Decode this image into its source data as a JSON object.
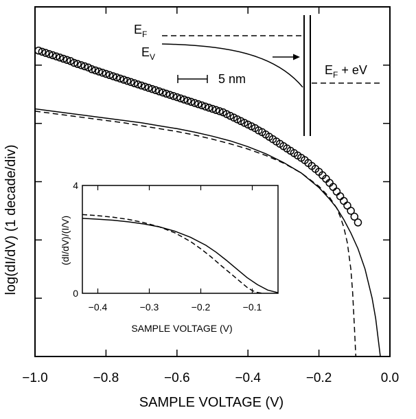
{
  "chart_data": [
    {
      "type": "scatter",
      "xlabel": "SAMPLE VOLTAGE (V)",
      "ylabel": "log(dI/dV) (1 decade/div)",
      "xlim": [
        -1.0,
        0.0
      ],
      "ylim": [
        0,
        6
      ],
      "x_ticks": [
        -1.0,
        -0.8,
        -0.6,
        -0.4,
        -0.2,
        0.0
      ],
      "x_tick_labels": [
        "−1.0",
        "−0.8",
        "−0.6",
        "−0.4",
        "−0.2",
        "0.0"
      ],
      "y_ticks": [
        1,
        2,
        3,
        4,
        5
      ],
      "y_tick_labels_shown": false,
      "grid": false,
      "series": [
        {
          "style": "open-circles",
          "x": [
            -0.99,
            -0.98,
            -0.97,
            -0.96,
            -0.95,
            -0.94,
            -0.93,
            -0.92,
            -0.91,
            -0.9,
            -0.89,
            -0.88,
            -0.87,
            -0.86,
            -0.85,
            -0.84,
            -0.83,
            -0.82,
            -0.81,
            -0.8,
            -0.79,
            -0.78,
            -0.77,
            -0.76,
            -0.75,
            -0.74,
            -0.73,
            -0.72,
            -0.71,
            -0.7,
            -0.69,
            -0.68,
            -0.67,
            -0.66,
            -0.65,
            -0.64,
            -0.63,
            -0.62,
            -0.61,
            -0.6,
            -0.59,
            -0.58,
            -0.57,
            -0.56,
            -0.55,
            -0.54,
            -0.53,
            -0.52,
            -0.51,
            -0.5,
            -0.49,
            -0.48,
            -0.47,
            -0.46,
            -0.45,
            -0.44,
            -0.43,
            -0.42,
            -0.41,
            -0.4,
            -0.39,
            -0.38,
            -0.37,
            -0.36,
            -0.35,
            -0.34,
            -0.33,
            -0.32,
            -0.31,
            -0.3,
            -0.29,
            -0.28,
            -0.27,
            -0.26,
            -0.25,
            -0.24,
            -0.23,
            -0.22,
            -0.21,
            -0.2,
            -0.19,
            -0.18,
            -0.17,
            -0.16,
            -0.15,
            -0.14,
            -0.13,
            -0.12,
            -0.11,
            -0.1,
            -0.09
          ],
          "y": [
            5.25,
            5.23,
            5.21,
            5.19,
            5.17,
            5.15,
            5.13,
            5.11,
            5.09,
            5.07,
            5.04,
            5.02,
            5.0,
            4.98,
            4.96,
            4.93,
            4.91,
            4.89,
            4.87,
            4.85,
            4.83,
            4.81,
            4.79,
            4.77,
            4.75,
            4.73,
            4.71,
            4.69,
            4.67,
            4.65,
            4.63,
            4.61,
            4.59,
            4.57,
            4.55,
            4.53,
            4.51,
            4.49,
            4.47,
            4.45,
            4.43,
            4.41,
            4.39,
            4.37,
            4.35,
            4.33,
            4.31,
            4.29,
            4.27,
            4.25,
            4.23,
            4.21,
            4.19,
            4.16,
            4.13,
            4.1,
            4.07,
            4.04,
            4.01,
            3.98,
            3.95,
            3.92,
            3.88,
            3.85,
            3.81,
            3.77,
            3.73,
            3.69,
            3.65,
            3.61,
            3.57,
            3.53,
            3.49,
            3.45,
            3.41,
            3.37,
            3.32,
            3.27,
            3.22,
            3.17,
            3.11,
            3.05,
            2.98,
            2.91,
            2.83,
            2.75,
            2.67,
            2.59,
            2.5,
            2.4,
            2.3
          ]
        },
        {
          "style": "solid-line",
          "x": [
            -1.0,
            -0.95,
            -0.9,
            -0.85,
            -0.8,
            -0.75,
            -0.7,
            -0.65,
            -0.6,
            -0.55,
            -0.5,
            -0.45,
            -0.4,
            -0.35,
            -0.3,
            -0.25,
            -0.2,
            -0.17,
            -0.15,
            -0.13,
            -0.11,
            -0.09,
            -0.07,
            -0.05,
            -0.04,
            -0.035,
            -0.03,
            -0.025
          ],
          "y": [
            4.25,
            4.21,
            4.17,
            4.13,
            4.09,
            4.05,
            4.01,
            3.96,
            3.91,
            3.85,
            3.78,
            3.7,
            3.6,
            3.48,
            3.33,
            3.15,
            2.9,
            2.7,
            2.55,
            2.35,
            2.12,
            1.85,
            1.5,
            1.0,
            0.65,
            0.4,
            0.15,
            -0.1
          ]
        },
        {
          "style": "dashed-line",
          "x": [
            -1.0,
            -0.95,
            -0.9,
            -0.85,
            -0.8,
            -0.75,
            -0.7,
            -0.65,
            -0.6,
            -0.55,
            -0.5,
            -0.45,
            -0.4,
            -0.35,
            -0.3,
            -0.25,
            -0.2,
            -0.17,
            -0.15,
            -0.14,
            -0.13,
            -0.12,
            -0.11,
            -0.105,
            -0.1,
            -0.097,
            -0.095
          ],
          "y": [
            4.21,
            4.17,
            4.13,
            4.09,
            4.05,
            4.01,
            3.96,
            3.91,
            3.86,
            3.8,
            3.73,
            3.65,
            3.56,
            3.45,
            3.32,
            3.15,
            2.92,
            2.73,
            2.55,
            2.4,
            2.22,
            1.95,
            1.5,
            1.1,
            0.5,
            0.1,
            -0.1
          ]
        }
      ],
      "annotations": {
        "ef_main": "E",
        "ef_sub": "F",
        "ev_main": "E",
        "ev_sub": "V",
        "scale_bar": "5 nm",
        "bias_main": "E",
        "bias_sub": "F",
        "bias_suffix": " + eV"
      }
    },
    {
      "type": "line",
      "xlabel": "SAMPLE VOLTAGE (V)",
      "ylabel": "(dI/dV)/(I/V)",
      "xlim": [
        -0.43,
        -0.05
      ],
      "ylim": [
        0,
        4
      ],
      "x_ticks": [
        -0.4,
        -0.3,
        -0.2,
        -0.1
      ],
      "x_tick_labels": [
        "−0.4",
        "−0.3",
        "−0.2",
        "−0.1"
      ],
      "y_ticks": [
        0,
        4
      ],
      "y_tick_labels": [
        "0",
        "4"
      ],
      "series": [
        {
          "style": "solid-line",
          "x": [
            -0.43,
            -0.4,
            -0.37,
            -0.34,
            -0.31,
            -0.28,
            -0.25,
            -0.22,
            -0.19,
            -0.17,
            -0.15,
            -0.13,
            -0.11,
            -0.09,
            -0.07,
            -0.05
          ],
          "y": [
            2.78,
            2.75,
            2.71,
            2.65,
            2.57,
            2.46,
            2.3,
            2.08,
            1.78,
            1.52,
            1.22,
            0.9,
            0.58,
            0.32,
            0.12,
            0.02
          ]
        },
        {
          "style": "dashed-line",
          "x": [
            -0.43,
            -0.4,
            -0.37,
            -0.34,
            -0.31,
            -0.28,
            -0.25,
            -0.22,
            -0.2,
            -0.18,
            -0.16,
            -0.14,
            -0.12,
            -0.11,
            -0.1,
            -0.09,
            -0.08
          ],
          "y": [
            2.92,
            2.88,
            2.82,
            2.74,
            2.62,
            2.46,
            2.24,
            1.92,
            1.65,
            1.35,
            1.02,
            0.7,
            0.38,
            0.22,
            0.1,
            0.03,
            0.0
          ]
        }
      ]
    }
  ]
}
